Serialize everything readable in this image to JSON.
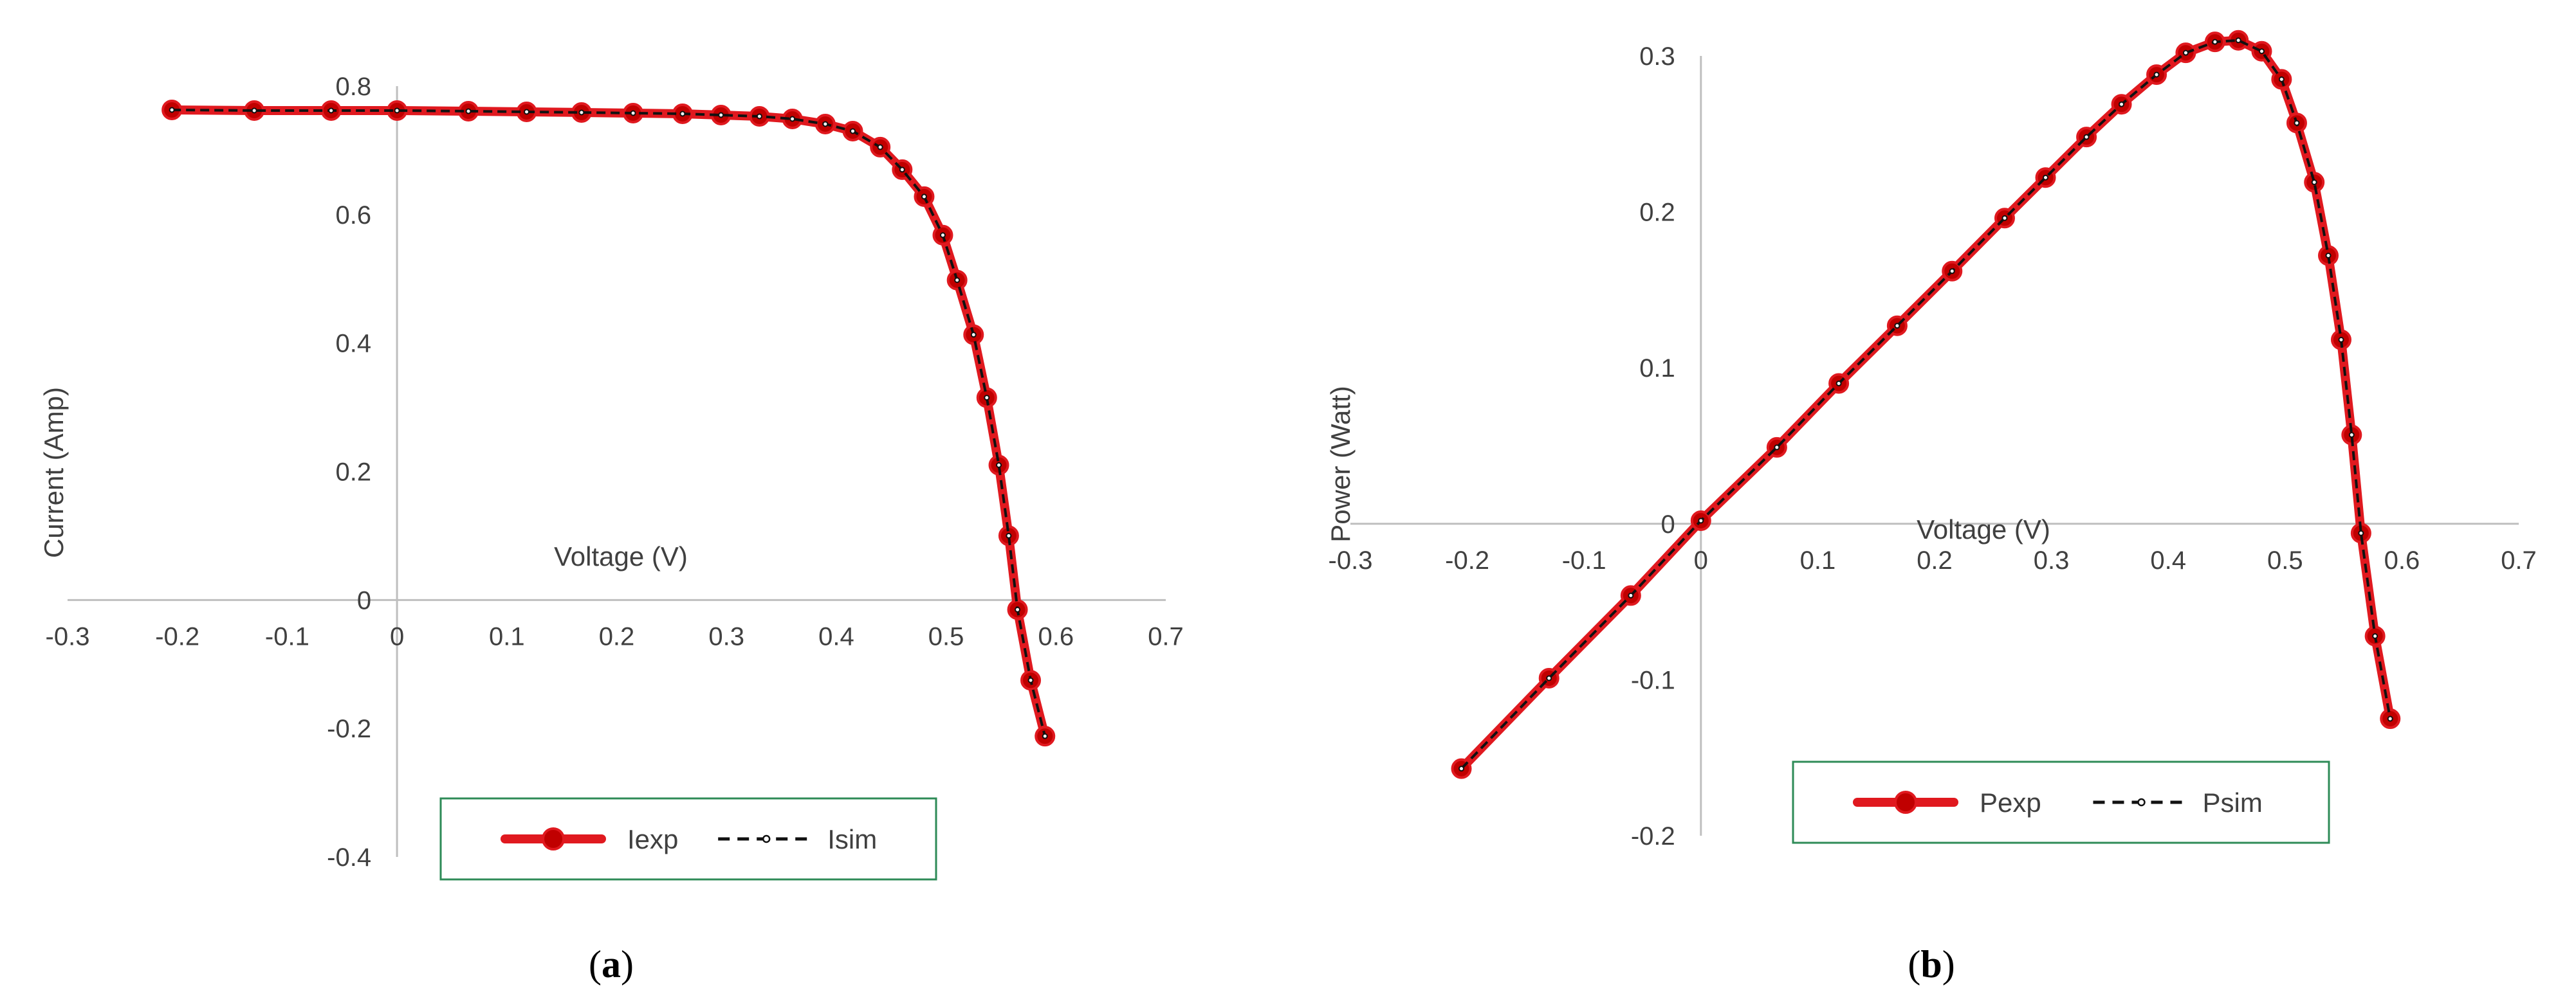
{
  "colors": {
    "experimental": "#e0191f",
    "experimental_marker": "#c00000",
    "simulated": "#111111",
    "axis": "#bfbfbf",
    "legend_border": "#2e8b57",
    "text": "#404040"
  },
  "chart_data": [
    {
      "type": "line",
      "caption": "a",
      "title": "",
      "xlabel": "Voltage (V)",
      "ylabel": "Current (Amp)",
      "xlim": [
        -0.3,
        0.7
      ],
      "ylim": [
        -0.4,
        0.8
      ],
      "xticks": [
        "-0.3",
        "-0.2",
        "-0.1",
        "0",
        "0.1",
        "0.2",
        "0.3",
        "0.4",
        "0.5",
        "0.6",
        "0.7"
      ],
      "yticks": [
        "-0.4",
        "-0.2",
        "0",
        "0.2",
        "0.4",
        "0.6",
        "0.8"
      ],
      "grid": false,
      "legend_position": "bottom",
      "x": [
        -0.205,
        -0.13,
        -0.06,
        0.0,
        0.065,
        0.118,
        0.168,
        0.215,
        0.26,
        0.295,
        0.33,
        0.36,
        0.39,
        0.415,
        0.44,
        0.46,
        0.48,
        0.497,
        0.51,
        0.525,
        0.537,
        0.548,
        0.557,
        0.565,
        0.577,
        0.59
      ],
      "series": [
        {
          "name": "Iexp",
          "style": "solid-marker",
          "values": [
            0.763,
            0.762,
            0.762,
            0.762,
            0.761,
            0.76,
            0.759,
            0.758,
            0.757,
            0.755,
            0.753,
            0.749,
            0.741,
            0.73,
            0.705,
            0.67,
            0.628,
            0.568,
            0.498,
            0.413,
            0.315,
            0.21,
            0.1,
            -0.015,
            -0.125,
            -0.212
          ]
        },
        {
          "name": "Isim",
          "style": "dashed",
          "values": [
            0.763,
            0.762,
            0.762,
            0.762,
            0.761,
            0.76,
            0.759,
            0.758,
            0.757,
            0.755,
            0.753,
            0.749,
            0.741,
            0.73,
            0.705,
            0.67,
            0.628,
            0.568,
            0.498,
            0.413,
            0.315,
            0.21,
            0.1,
            -0.015,
            -0.125,
            -0.212
          ]
        }
      ]
    },
    {
      "type": "line",
      "caption": "b",
      "title": "",
      "xlabel": "Voltage (V)",
      "ylabel": "Power (Watt)",
      "xlim": [
        -0.3,
        0.7
      ],
      "ylim": [
        -0.2,
        0.3
      ],
      "xticks": [
        "-0.3",
        "-0.2",
        "-0.1",
        "0",
        "0.1",
        "0.2",
        "0.3",
        "0.4",
        "0.5",
        "0.6",
        "0.7"
      ],
      "yticks": [
        "-0.2",
        "-0.1",
        "0",
        "0.1",
        "0.2",
        "0.3"
      ],
      "grid": false,
      "legend_position": "bottom",
      "x": [
        -0.205,
        -0.13,
        -0.06,
        0.0,
        0.065,
        0.118,
        0.168,
        0.215,
        0.26,
        0.295,
        0.33,
        0.36,
        0.39,
        0.415,
        0.44,
        0.46,
        0.48,
        0.497,
        0.51,
        0.525,
        0.537,
        0.548,
        0.557,
        0.565,
        0.577,
        0.59
      ],
      "series": [
        {
          "name": "Pexp",
          "style": "solid-marker",
          "values": [
            -0.157,
            -0.099,
            -0.046,
            0.002,
            0.049,
            0.09,
            0.127,
            0.162,
            0.196,
            0.222,
            0.248,
            0.269,
            0.288,
            0.302,
            0.309,
            0.31,
            0.303,
            0.285,
            0.257,
            0.219,
            0.172,
            0.118,
            0.057,
            -0.006,
            -0.072,
            -0.125
          ]
        },
        {
          "name": "Psim",
          "style": "dashed",
          "values": [
            -0.157,
            -0.099,
            -0.046,
            0.002,
            0.049,
            0.09,
            0.127,
            0.162,
            0.196,
            0.222,
            0.248,
            0.269,
            0.288,
            0.302,
            0.309,
            0.31,
            0.303,
            0.285,
            0.257,
            0.219,
            0.172,
            0.118,
            0.057,
            -0.006,
            -0.072,
            -0.125
          ]
        }
      ]
    }
  ],
  "captions": [
    {
      "open": "(",
      "letter": "a",
      "close": ")"
    },
    {
      "open": "(",
      "letter": "b",
      "close": ")"
    }
  ]
}
